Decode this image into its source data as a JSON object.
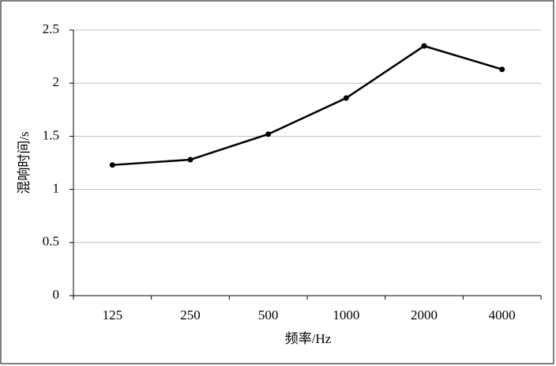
{
  "chart_data": {
    "type": "line",
    "x_label": "频率/Hz",
    "y_label": "混响时间/s",
    "categories": [
      "125",
      "250",
      "500",
      "1000",
      "2000",
      "4000"
    ],
    "series": [
      {
        "color": "#000000",
        "values": [
          1.23,
          1.28,
          1.52,
          1.86,
          2.35,
          2.13
        ]
      }
    ],
    "ylim": [
      0,
      2.5
    ],
    "yticks": [
      0,
      0.5,
      1,
      1.5,
      2,
      2.5
    ],
    "grid": true
  }
}
